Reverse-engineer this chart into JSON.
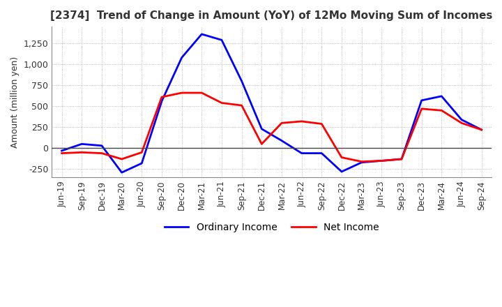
{
  "title": "[2374]  Trend of Change in Amount (YoY) of 12Mo Moving Sum of Incomes",
  "ylabel": "Amount (million yen)",
  "ylim": [
    -350,
    1450
  ],
  "yticks": [
    -250,
    0,
    250,
    500,
    750,
    1000,
    1250
  ],
  "legend_labels": [
    "Ordinary Income",
    "Net Income"
  ],
  "line_colors": [
    "blue",
    "red"
  ],
  "x_labels": [
    "Jun-19",
    "Sep-19",
    "Dec-19",
    "Mar-20",
    "Jun-20",
    "Sep-20",
    "Dec-20",
    "Mar-21",
    "Jun-21",
    "Sep-21",
    "Dec-21",
    "Mar-22",
    "Jun-22",
    "Sep-22",
    "Dec-22",
    "Mar-23",
    "Jun-23",
    "Sep-23",
    "Dec-23",
    "Mar-24",
    "Jun-24",
    "Sep-24"
  ],
  "ordinary_income": [
    -30,
    50,
    30,
    -290,
    -180,
    560,
    1080,
    1360,
    1290,
    800,
    230,
    90,
    -60,
    -60,
    -280,
    -170,
    -150,
    -130,
    570,
    620,
    340,
    220
  ],
  "net_income": [
    -60,
    -50,
    -60,
    -130,
    -50,
    610,
    660,
    660,
    540,
    510,
    50,
    300,
    320,
    290,
    -110,
    -160,
    -150,
    -130,
    470,
    450,
    300,
    220
  ],
  "background_color": "#ffffff",
  "grid_color": "#aaaaaa"
}
